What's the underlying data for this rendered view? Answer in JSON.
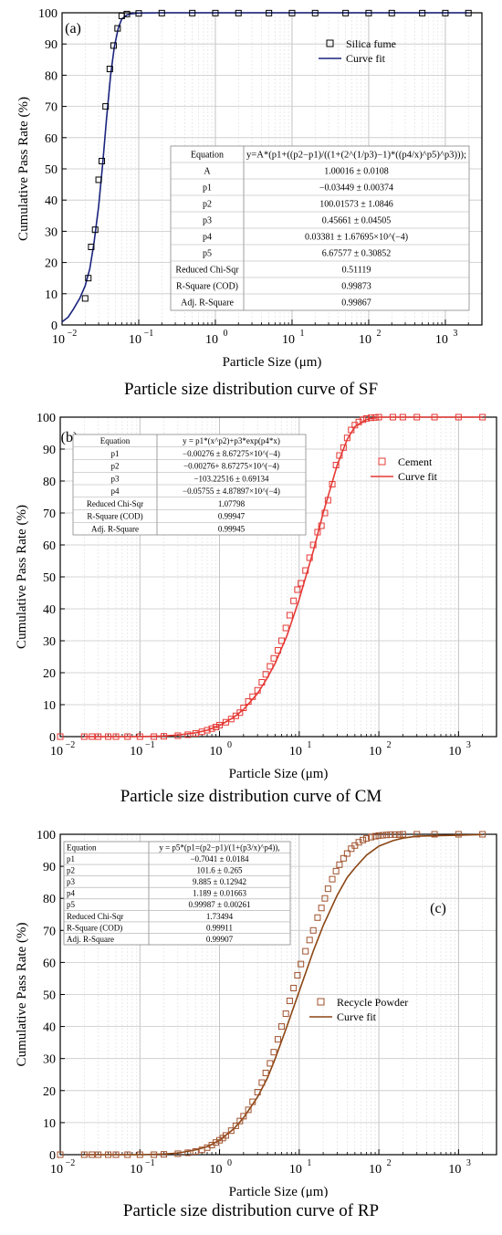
{
  "chart_data": [
    {
      "type": "scatter",
      "panel_label": "(a)",
      "caption": "Particle size distribution curve of SF",
      "xlabel": "Particle Size (μm)",
      "ylabel": "Cumulative Pass Rate (%)",
      "xscale": "log",
      "xlim": [
        0.01,
        3000
      ],
      "ylim": [
        0,
        100
      ],
      "x_ticks": [
        "10",
        "10",
        "10",
        "10",
        "10",
        "10"
      ],
      "x_tick_exponents": [
        "−2",
        "−1",
        "0",
        "1",
        "2",
        "3"
      ],
      "y_ticks": [
        "0",
        "10",
        "20",
        "30",
        "40",
        "50",
        "60",
        "70",
        "80",
        "90",
        "100"
      ],
      "grid": true,
      "legend_position": "top-right",
      "series": [
        {
          "name": "Silica fume",
          "kind": "markers",
          "color": "#000000",
          "x": [
            0.02,
            0.022,
            0.024,
            0.027,
            0.03,
            0.033,
            0.037,
            0.042,
            0.047,
            0.053,
            0.06,
            0.07,
            0.1,
            0.2,
            0.5,
            1,
            2,
            5,
            10,
            20,
            50,
            100,
            200,
            500,
            1000,
            2000
          ],
          "y": [
            8.5,
            15,
            25,
            30.5,
            46.5,
            52.5,
            70,
            82,
            89.5,
            95,
            99,
            99.6,
            99.8,
            99.9,
            99.9,
            99.9,
            99.9,
            99.9,
            99.9,
            99.9,
            99.9,
            99.9,
            99.9,
            99.9,
            99.9,
            99.9
          ]
        },
        {
          "name": "Curve fit",
          "kind": "line",
          "color": "#1a237e",
          "x": [
            0.01,
            0.012,
            0.014,
            0.017,
            0.02,
            0.023,
            0.026,
            0.03,
            0.034,
            0.038,
            0.043,
            0.048,
            0.054,
            0.06,
            0.07,
            0.08,
            0.1,
            0.2,
            1,
            10,
            100,
            2000
          ],
          "y": [
            1,
            2.5,
            5,
            8.5,
            12.5,
            18,
            26,
            38,
            52,
            66,
            80,
            89,
            95,
            98,
            99.3,
            99.7,
            99.9,
            100,
            100,
            100,
            100,
            100
          ]
        }
      ],
      "fit_table": [
        {
          "label": "Equation",
          "value": "y=A*(p1+((p2−p1)/((1+(2^(1/p3)−1)*((p4/x)^p5)^p3)));"
        },
        {
          "label": "A",
          "value": "1.00016 ± 0.0108"
        },
        {
          "label": "p1",
          "value": "−0.03449 ± 0.00374"
        },
        {
          "label": "p2",
          "value": "100.01573 ± 1.0846"
        },
        {
          "label": "p3",
          "value": "0.45661 ± 0.04505"
        },
        {
          "label": "p4",
          "value": "0.03381 ± 1.67695×10^(−4)"
        },
        {
          "label": "p5",
          "value": "6.67577 ± 0.30852"
        },
        {
          "label": "Reduced Chi-Sqr",
          "value": "0.51119"
        },
        {
          "label": "R-Square (COD)",
          "value": "0.99873"
        },
        {
          "label": "Adj. R-Square",
          "value": "0.99867"
        }
      ]
    },
    {
      "type": "scatter",
      "panel_label": "(b)",
      "caption": "Particle size distribution curve of CM",
      "xlabel": "Particle Size (μm)",
      "ylabel": "Cumulative Pass Rate (%)",
      "xscale": "log",
      "xlim": [
        0.01,
        3000
      ],
      "ylim": [
        0,
        100
      ],
      "x_ticks": [
        "10",
        "10",
        "10",
        "10",
        "10",
        "10"
      ],
      "x_tick_exponents": [
        "−2",
        "−1",
        "0",
        "1",
        "2",
        "3"
      ],
      "y_ticks": [
        "0",
        "10",
        "20",
        "30",
        "40",
        "50",
        "60",
        "70",
        "80",
        "90",
        "100"
      ],
      "grid": true,
      "legend_position": "top-right",
      "series": [
        {
          "name": "Cement",
          "kind": "markers",
          "color": "#e53935",
          "x": [
            0.01,
            0.02,
            0.025,
            0.03,
            0.04,
            0.05,
            0.07,
            0.1,
            0.15,
            0.2,
            0.3,
            0.4,
            0.5,
            0.6,
            0.7,
            0.8,
            0.9,
            1,
            1.2,
            1.4,
            1.6,
            1.8,
            2,
            2.3,
            2.6,
            3,
            3.4,
            3.8,
            4.3,
            4.8,
            5.4,
            6,
            6.8,
            7.6,
            8.5,
            9.5,
            10.5,
            12,
            13.5,
            15,
            17,
            19,
            21,
            23,
            26,
            29,
            32,
            36,
            40,
            45,
            50,
            56,
            63,
            70,
            80,
            90,
            100,
            150,
            200,
            300,
            500,
            1000,
            2000
          ],
          "y": [
            0,
            0,
            0,
            0,
            0,
            0,
            0,
            0,
            0,
            0.1,
            0.3,
            0.6,
            1,
            1.5,
            2,
            2.5,
            3,
            3.6,
            4.5,
            5.5,
            6.5,
            7.5,
            9,
            11,
            12.5,
            14.5,
            17,
            19.5,
            22,
            24.5,
            27,
            30,
            34,
            38,
            42.5,
            46,
            48,
            52,
            56,
            60,
            64,
            66,
            70,
            74,
            79,
            85,
            88,
            90.5,
            93.5,
            96,
            97.5,
            98.5,
            99.2,
            99.6,
            99.8,
            99.9,
            100,
            100,
            100,
            100,
            100,
            100,
            100
          ]
        },
        {
          "name": "Curve fit",
          "kind": "line",
          "color": "#e53935",
          "x": [
            0.02,
            0.05,
            0.1,
            0.2,
            0.3,
            0.5,
            0.7,
            1,
            1.5,
            2,
            3,
            4,
            5,
            7,
            10,
            15,
            20,
            30,
            40,
            50,
            70,
            100,
            200,
            2000
          ],
          "y": [
            0,
            0,
            0,
            0.2,
            0.5,
            1.2,
            2,
            3.5,
            6,
            8.5,
            13.5,
            18.5,
            23,
            31.5,
            43,
            58,
            70,
            85,
            93,
            97,
            99.3,
            100,
            100,
            100
          ]
        }
      ],
      "fit_table": [
        {
          "label": "Equation",
          "value": "y = p1*(x^p2)+p3*exp(p4*x)"
        },
        {
          "label": "p1",
          "value": "−0.00276 ± 8.67275×10^(−4)"
        },
        {
          "label": "p2",
          "value": "−0.00276+ 8.67275×10^(−4)"
        },
        {
          "label": "p3",
          "value": "−103.22516 ± 0.69134"
        },
        {
          "label": "p4",
          "value": "−0.05755 ± 4.87897×10^(−4)"
        },
        {
          "label": "Reduced Chi-Sqr",
          "value": "1.07798"
        },
        {
          "label": "R-Square (COD)",
          "value": "0.99947"
        },
        {
          "label": "Adj. R-Square",
          "value": "0.99945"
        }
      ]
    },
    {
      "type": "scatter",
      "panel_label": "(c)",
      "caption": "Particle size distribution curve of RP",
      "xlabel": "Particle Size (μm)",
      "ylabel": "Cumulative Pass Rate (%)",
      "xscale": "log",
      "xlim": [
        0.01,
        3000
      ],
      "ylim": [
        0,
        100
      ],
      "x_ticks": [
        "10",
        "10",
        "10",
        "10",
        "10",
        "10"
      ],
      "x_tick_exponents": [
        "−2",
        "−1",
        "0",
        "1",
        "2",
        "3"
      ],
      "y_ticks": [
        "0",
        "10",
        "20",
        "30",
        "40",
        "50",
        "60",
        "70",
        "80",
        "90",
        "100"
      ],
      "grid": true,
      "legend_position": "center-right",
      "series": [
        {
          "name": "Recycle Powder",
          "kind": "markers",
          "color": "#a0522d",
          "x": [
            0.01,
            0.02,
            0.025,
            0.03,
            0.04,
            0.05,
            0.07,
            0.1,
            0.15,
            0.2,
            0.3,
            0.4,
            0.5,
            0.6,
            0.7,
            0.8,
            0.9,
            1,
            1.1,
            1.2,
            1.4,
            1.6,
            1.8,
            2,
            2.3,
            2.6,
            3,
            3.4,
            3.8,
            4.3,
            4.8,
            5.4,
            6,
            6.8,
            7.6,
            8.5,
            9.5,
            10.5,
            12,
            13.5,
            15,
            17,
            19,
            21,
            23,
            26,
            29,
            32,
            36,
            40,
            45,
            50,
            56,
            63,
            70,
            80,
            90,
            100,
            112,
            125,
            140,
            160,
            180,
            200,
            300,
            500,
            1000,
            2000
          ],
          "y": [
            0,
            0,
            0,
            0,
            0,
            0,
            0,
            0,
            0,
            0.1,
            0.3,
            0.6,
            1,
            1.5,
            2.2,
            3,
            3.8,
            4.5,
            5.2,
            6,
            7.5,
            9,
            10.5,
            12,
            14,
            16.5,
            19.5,
            22.5,
            25.5,
            28.5,
            32,
            36,
            40,
            44,
            48,
            52,
            56,
            59.5,
            63.5,
            67,
            70,
            74,
            77,
            80,
            83,
            86,
            88.5,
            90.5,
            92.5,
            94,
            95.5,
            96.5,
            97.5,
            98.2,
            98.7,
            99.1,
            99.4,
            99.6,
            99.7,
            99.8,
            99.9,
            99.9,
            99.9,
            100,
            100,
            100,
            100,
            100
          ]
        },
        {
          "name": "Curve fit",
          "kind": "line",
          "color": "#8b4513",
          "x": [
            0.02,
            0.05,
            0.1,
            0.2,
            0.3,
            0.5,
            0.7,
            1,
            1.5,
            2,
            3,
            4,
            5,
            7,
            10,
            15,
            20,
            30,
            40,
            50,
            70,
            100,
            150,
            200,
            300,
            2000
          ],
          "y": [
            0,
            0,
            0,
            0.2,
            0.5,
            1.5,
            2.5,
            4.5,
            8,
            11.5,
            18,
            24,
            30,
            40,
            51,
            63.5,
            71.5,
            81,
            86.5,
            89.5,
            93.5,
            96.3,
            98,
            98.8,
            99.4,
            99.9
          ]
        }
      ],
      "fit_table": [
        {
          "label": "Equation",
          "value": "y = p5*(p1=(p2−p1)/(1+(p3/x)^p4)),"
        },
        {
          "label": "p1",
          "value": "−0.7041 ± 0.0184"
        },
        {
          "label": "p2",
          "value": "101.6 ± 0.265"
        },
        {
          "label": "p3",
          "value": "9.885 ± 0.12942"
        },
        {
          "label": "p4",
          "value": "1.189 ± 0.01663"
        },
        {
          "label": "p5",
          "value": "0.99987 ± 0.00261"
        },
        {
          "label": "Reduced Chi-Sqr",
          "value": "1.73494"
        },
        {
          "label": "R-Square (COD)",
          "value": "0.99911"
        },
        {
          "label": "Adj. R-Square",
          "value": "0.99907"
        }
      ]
    }
  ]
}
